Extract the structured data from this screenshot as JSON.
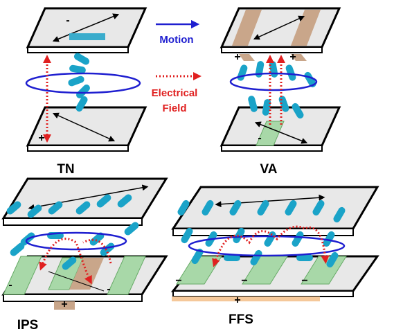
{
  "legend": {
    "motion": "Motion",
    "field": [
      "Electrical",
      "Field"
    ]
  },
  "panels": [
    {
      "label": "TN",
      "signs": [
        "-",
        "+"
      ]
    },
    {
      "label": "VA",
      "signs": [
        "+",
        "+",
        "-"
      ]
    },
    {
      "label": "IPS",
      "signs": [
        "-",
        "-",
        "+"
      ]
    },
    {
      "label": "FFS",
      "signs": [
        "−",
        "−",
        "−",
        "+"
      ]
    }
  ]
}
